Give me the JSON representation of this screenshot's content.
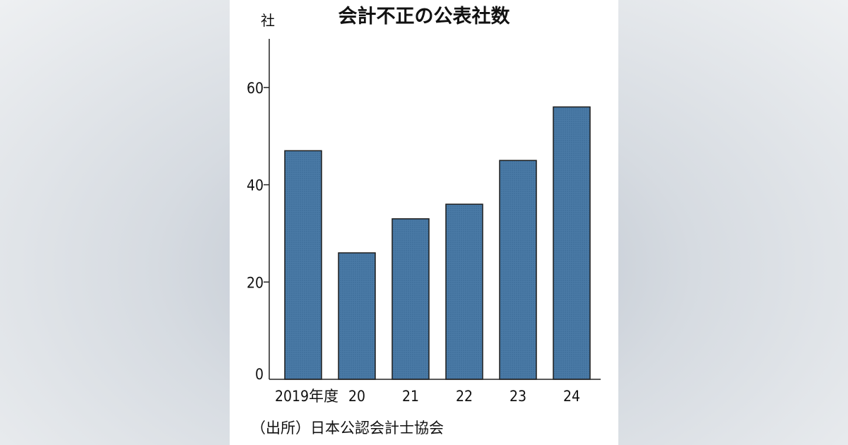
{
  "colors": {
    "bar_fill": "#4a7aa6",
    "bar_stroke": "#1c1c1c",
    "axis": "#222222",
    "background_card": "#ffffff"
  },
  "chart_data": {
    "type": "bar",
    "title": "会計不正の公表社数",
    "unit_label": "社",
    "xlabel": "",
    "ylabel": "",
    "categories": [
      "2019年度",
      "20",
      "21",
      "22",
      "23",
      "24"
    ],
    "values": [
      47,
      26,
      33,
      36,
      45,
      56
    ],
    "ylim": [
      0,
      70
    ],
    "yticks": [
      "0",
      "20",
      "40",
      "60"
    ],
    "ytick_values": [
      0,
      20,
      40,
      60
    ],
    "grid": false,
    "source": "（出所）日本公認会計士協会"
  }
}
